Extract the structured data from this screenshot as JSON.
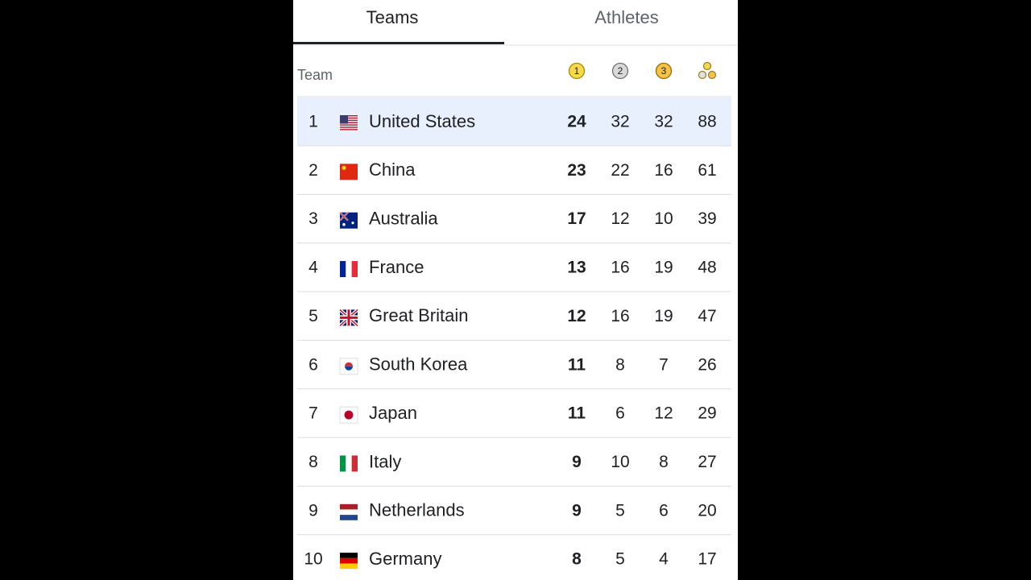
{
  "tabs": [
    "Teams",
    "Athletes"
  ],
  "table": {
    "header": {
      "team": "Team",
      "medals": [
        "1",
        "2",
        "3"
      ]
    },
    "rows": [
      {
        "rank": 1,
        "team": "United States",
        "gold": 24,
        "silver": 32,
        "bronze": 32,
        "total": 88
      },
      {
        "rank": 2,
        "team": "China",
        "gold": 23,
        "silver": 22,
        "bronze": 16,
        "total": 61
      },
      {
        "rank": 3,
        "team": "Australia",
        "gold": 17,
        "silver": 12,
        "bronze": 10,
        "total": 39
      },
      {
        "rank": 4,
        "team": "France",
        "gold": 13,
        "silver": 16,
        "bronze": 19,
        "total": 48
      },
      {
        "rank": 5,
        "team": "Great Britain",
        "gold": 12,
        "silver": 16,
        "bronze": 19,
        "total": 47
      },
      {
        "rank": 6,
        "team": "South Korea",
        "gold": 11,
        "silver": 8,
        "bronze": 7,
        "total": 26
      },
      {
        "rank": 7,
        "team": "Japan",
        "gold": 11,
        "silver": 6,
        "bronze": 12,
        "total": 29
      },
      {
        "rank": 8,
        "team": "Italy",
        "gold": 9,
        "silver": 10,
        "bronze": 8,
        "total": 27
      },
      {
        "rank": 9,
        "team": "Netherlands",
        "gold": 9,
        "silver": 5,
        "bronze": 6,
        "total": 20
      },
      {
        "rank": 10,
        "team": "Germany",
        "gold": 8,
        "silver": 5,
        "bronze": 4,
        "total": 17
      }
    ]
  }
}
